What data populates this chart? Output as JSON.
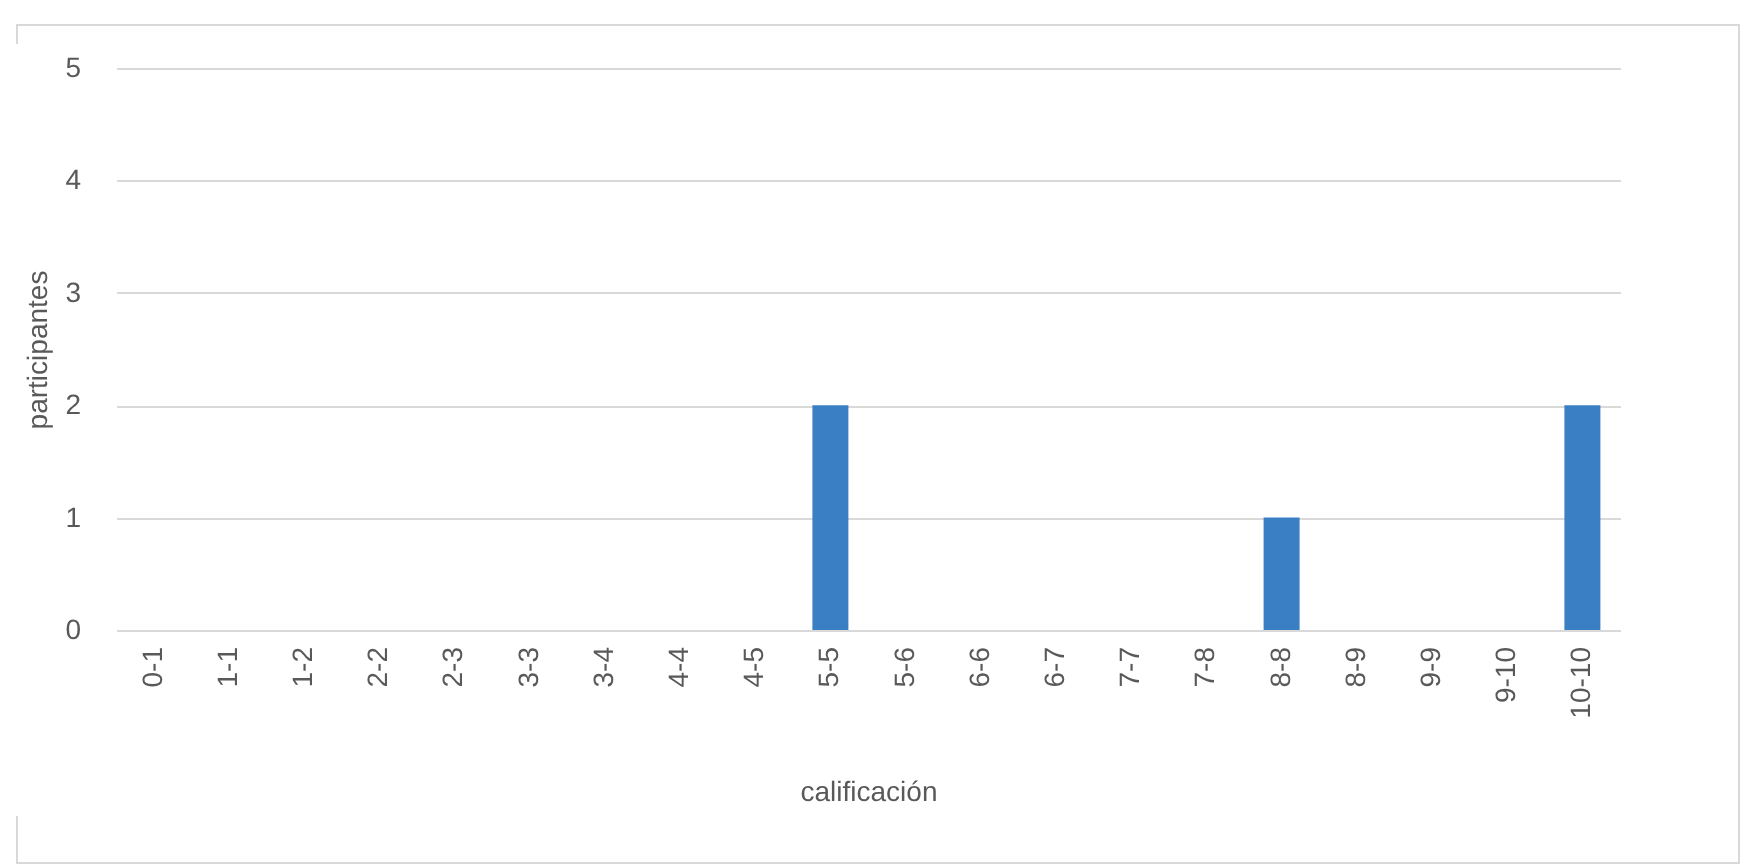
{
  "chart_data": {
    "type": "bar",
    "xlabel": "calificación",
    "ylabel": "participantes",
    "categories": [
      "0-1",
      "1-1",
      "1-2",
      "2-2",
      "2-3",
      "3-3",
      "3-4",
      "4-4",
      "4-5",
      "5-5",
      "5-6",
      "6-6",
      "6-7",
      "7-7",
      "7-8",
      "8-8",
      "8-9",
      "9-9",
      "9-10",
      "10-10"
    ],
    "values": [
      0,
      0,
      0,
      0,
      0,
      0,
      0,
      0,
      0,
      2,
      0,
      0,
      0,
      0,
      0,
      1,
      0,
      0,
      0,
      2
    ],
    "color": "#3a7fc4",
    "ylim": [
      0,
      5
    ],
    "yticks": [
      0,
      1,
      2,
      3,
      4,
      5
    ],
    "grid": "y"
  }
}
